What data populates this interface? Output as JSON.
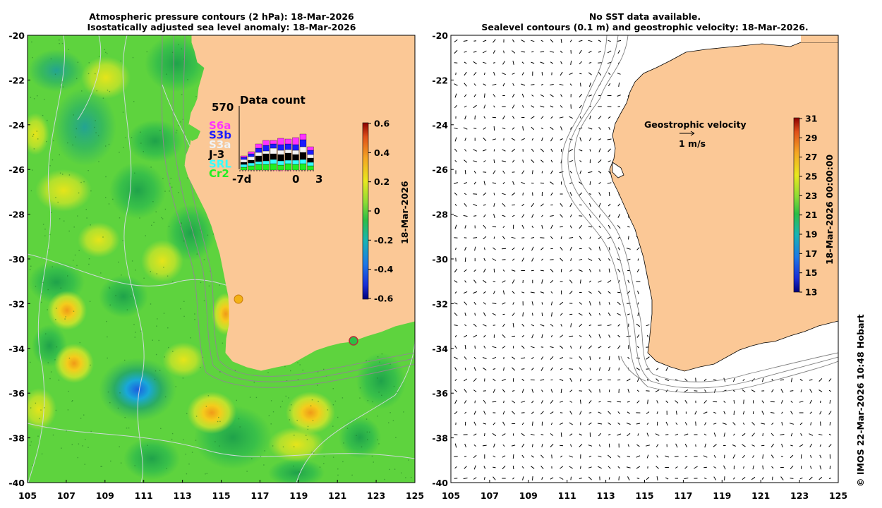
{
  "left_panel": {
    "title_line1": "Atmospheric pressure contours (2 hPa): 18-Mar-2026",
    "title_line2": "Isostatically adjusted sea level anomaly: 18-Mar-2026",
    "x_ticks": [
      "105",
      "107",
      "109",
      "111",
      "113",
      "115",
      "117",
      "119",
      "121",
      "123",
      "125"
    ],
    "y_ticks": [
      "-20",
      "-22",
      "-24",
      "-26",
      "-28",
      "-30",
      "-32",
      "-34",
      "-36",
      "-38",
      "-40"
    ],
    "colorbar": {
      "label": "18-Mar-2026",
      "ticks": [
        "0.6",
        "0.4",
        "0.2",
        "0",
        "-0.2",
        "-0.4",
        "-0.6"
      ],
      "range": [
        -0.6,
        0.6
      ]
    },
    "inset": {
      "title": "Data count",
      "max_count": "570",
      "missions": [
        {
          "name": "S6a",
          "color": "#ff33ff"
        },
        {
          "name": "S3b",
          "color": "#1a1aff"
        },
        {
          "name": "S3a",
          "color": "#f4f4f4"
        },
        {
          "name": "J-3",
          "color": "#000000"
        },
        {
          "name": "SRL",
          "color": "#33ffff"
        },
        {
          "name": "Cr2",
          "color": "#22ee22"
        }
      ],
      "x_labels": [
        "-7d",
        "0",
        "3"
      ]
    }
  },
  "right_panel": {
    "title_line1": "No SST data available.",
    "title_line2": "Sealevel contours (0.1 m) and geostrophic velocity: 18-Mar-2026.",
    "x_ticks": [
      "105",
      "107",
      "109",
      "111",
      "113",
      "115",
      "117",
      "119",
      "121",
      "123",
      "125"
    ],
    "y_ticks": [
      "-20",
      "-22",
      "-24",
      "-26",
      "-28",
      "-30",
      "-32",
      "-34",
      "-36",
      "-38",
      "-40"
    ],
    "legend_title": "Geostrophic velocity",
    "legend_scale": "1 m/s",
    "colorbar": {
      "label": "18-Mar-2026 00:00:00",
      "ticks": [
        "31",
        "29",
        "27",
        "25",
        "23",
        "21",
        "19",
        "17",
        "15",
        "13"
      ],
      "range": [
        13,
        31
      ]
    }
  },
  "credit": "© IMOS 22-Mar-2026 10:48 Hobart",
  "colors": {
    "land": "#fbc896",
    "ocean_base": "#5ed33e",
    "frame": "#000000"
  }
}
